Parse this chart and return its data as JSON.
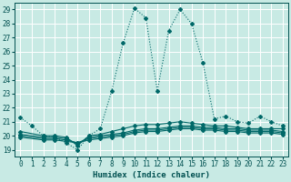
{
  "title": "",
  "xlabel": "Humidex (Indice chaleur)",
  "ylabel": "",
  "xlim": [
    -0.5,
    23.5
  ],
  "ylim": [
    18.5,
    29.5
  ],
  "xticks": [
    0,
    1,
    2,
    3,
    4,
    5,
    6,
    7,
    8,
    9,
    10,
    11,
    12,
    13,
    14,
    15,
    16,
    17,
    18,
    19,
    20,
    21,
    22,
    23
  ],
  "yticks": [
    19,
    20,
    21,
    22,
    23,
    24,
    25,
    26,
    27,
    28,
    29
  ],
  "bg_color": "#c8eae4",
  "grid_color": "#ffffff",
  "line_color": "#006868",
  "lines": [
    {
      "x": [
        0,
        1,
        2,
        3,
        4,
        5,
        6,
        7,
        8,
        9,
        10,
        11,
        12,
        13,
        14,
        15,
        16,
        17,
        18,
        19,
        20,
        21,
        22,
        23
      ],
      "y": [
        21.3,
        20.7,
        20.0,
        19.9,
        19.5,
        19.0,
        20.0,
        20.5,
        23.2,
        26.6,
        29.1,
        28.4,
        23.2,
        27.5,
        29.0,
        28.0,
        25.2,
        21.2,
        21.4,
        21.0,
        20.9,
        21.4,
        21.0,
        20.7
      ],
      "style": "dotted"
    },
    {
      "x": [
        0,
        2,
        3,
        4,
        5,
        6,
        7,
        8,
        9,
        10,
        11,
        12,
        13,
        14,
        15,
        16,
        17,
        18,
        19,
        20,
        21,
        22,
        23
      ],
      "y": [
        20.3,
        20.0,
        20.0,
        19.9,
        19.3,
        20.0,
        20.1,
        20.3,
        20.5,
        20.7,
        20.8,
        20.8,
        20.9,
        21.0,
        20.9,
        20.8,
        20.7,
        20.7,
        20.6,
        20.5,
        20.5,
        20.5,
        20.5
      ],
      "style": "solid"
    },
    {
      "x": [
        0,
        2,
        3,
        4,
        5,
        6,
        7,
        8,
        9,
        10,
        11,
        12,
        13,
        14,
        15,
        16,
        17,
        18,
        19,
        20,
        21,
        22,
        23
      ],
      "y": [
        20.1,
        19.9,
        19.9,
        19.8,
        19.4,
        19.9,
        20.0,
        20.1,
        20.2,
        20.4,
        20.5,
        20.5,
        20.6,
        20.7,
        20.7,
        20.6,
        20.6,
        20.5,
        20.5,
        20.4,
        20.4,
        20.4,
        20.3
      ],
      "style": "solid"
    },
    {
      "x": [
        0,
        2,
        3,
        4,
        5,
        6,
        7,
        8,
        9,
        10,
        11,
        12,
        13,
        14,
        15,
        16,
        17,
        18,
        19,
        20,
        21,
        22,
        23
      ],
      "y": [
        20.0,
        19.8,
        19.8,
        19.7,
        19.5,
        19.8,
        19.9,
        20.0,
        20.1,
        20.3,
        20.4,
        20.4,
        20.5,
        20.6,
        20.6,
        20.5,
        20.5,
        20.4,
        20.4,
        20.3,
        20.3,
        20.3,
        20.2
      ],
      "style": "solid"
    },
    {
      "x": [
        0,
        2,
        3,
        4,
        5,
        6,
        7,
        8,
        9,
        10,
        11,
        12,
        13,
        14,
        15,
        16,
        17,
        18,
        19,
        20,
        21,
        22,
        23
      ],
      "y": [
        19.9,
        19.7,
        19.7,
        19.6,
        19.5,
        19.7,
        19.8,
        19.9,
        20.0,
        20.2,
        20.3,
        20.3,
        20.4,
        20.5,
        20.5,
        20.4,
        20.4,
        20.3,
        20.3,
        20.2,
        20.2,
        20.2,
        20.1
      ],
      "style": "solid"
    }
  ],
  "marker": "D",
  "markersize": 2.0,
  "linewidth": 0.8,
  "font_color": "#005050",
  "tick_fontsize": 5.5,
  "label_fontsize": 6.5
}
